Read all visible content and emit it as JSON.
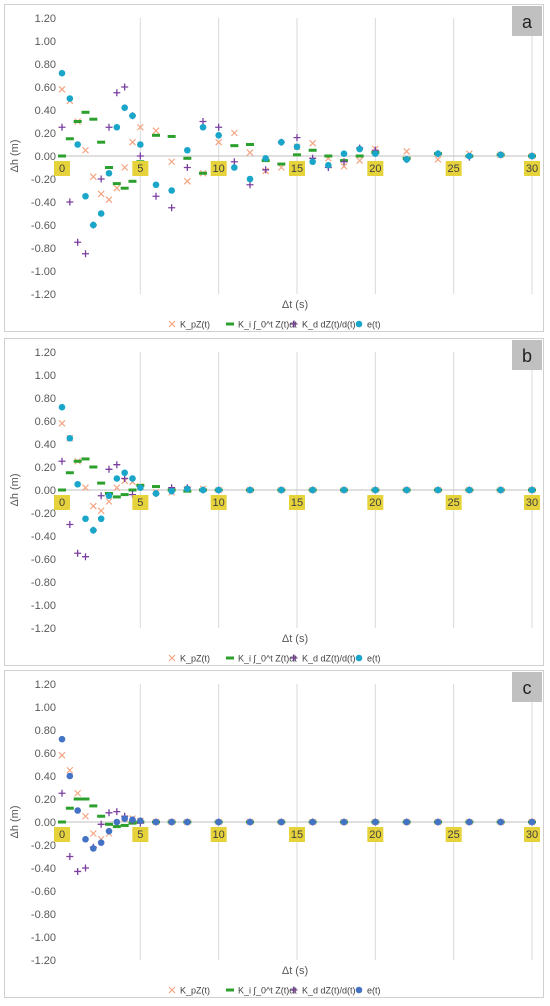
{
  "chart_data": [
    {
      "panel_label": "a",
      "type": "scatter",
      "xlabel": "Δt (s)",
      "ylabel": "Δh (m)",
      "xlim": [
        0,
        30
      ],
      "ylim": [
        -1.2,
        1.2
      ],
      "y_ticks": [
        "1.20",
        "1.00",
        "0.80",
        "0.60",
        "0.40",
        "0.20",
        "0.00",
        "-0.20",
        "-0.40",
        "-0.60",
        "-0.80",
        "-1.00",
        "-1.20"
      ],
      "x_ticks": [
        "0",
        "5",
        "10",
        "15",
        "20",
        "25",
        "30"
      ],
      "grid": "vertical",
      "legend_position": "bottom",
      "legend": [
        "K_pZ(t)",
        "K_i ∫_0^t Z(t)dt",
        "K_d dZ(t)/d(t)",
        "e(t)"
      ],
      "series_colors": [
        "#f4a582",
        "#2ca02c",
        "#7b3fa0",
        "#1aa6c9"
      ],
      "series": [
        {
          "name": "K_pZ(t)",
          "x": [
            0,
            0.5,
            1,
            1.5,
            2,
            2.5,
            3,
            3.5,
            4,
            4.5,
            5,
            6,
            7,
            8,
            9,
            10,
            11,
            12,
            13,
            14,
            15,
            16,
            17,
            18,
            19,
            20,
            22,
            24,
            26,
            28,
            30
          ],
          "values": [
            0.58,
            0.48,
            0.3,
            0.05,
            -0.18,
            -0.33,
            -0.38,
            -0.28,
            -0.1,
            0.12,
            0.25,
            0.22,
            -0.05,
            -0.22,
            -0.15,
            0.12,
            0.2,
            0.03,
            -0.13,
            -0.1,
            0.08,
            0.11,
            -0.02,
            -0.09,
            -0.04,
            0.06,
            0.04,
            -0.03,
            0.02,
            0.01,
            0.0
          ]
        },
        {
          "name": "K_i ∫_0^t Z(t)dt",
          "x": [
            0,
            0.5,
            1,
            1.5,
            2,
            2.5,
            3,
            3.5,
            4,
            4.5,
            5,
            6,
            7,
            8,
            9,
            10,
            11,
            12,
            13,
            14,
            15,
            16,
            17,
            18,
            19,
            20,
            22,
            24,
            26,
            28,
            30
          ],
          "values": [
            0.0,
            0.15,
            0.3,
            0.38,
            0.32,
            0.12,
            -0.1,
            -0.24,
            -0.28,
            -0.22,
            -0.05,
            0.18,
            0.17,
            -0.02,
            -0.15,
            -0.09,
            0.09,
            0.1,
            -0.04,
            -0.07,
            0.01,
            0.05,
            0.0,
            -0.04,
            0.0,
            0.03,
            -0.02,
            0.02,
            0.0,
            0.01,
            0.0
          ]
        },
        {
          "name": "K_d dZ(t)/d(t)",
          "x": [
            0,
            0.5,
            1,
            1.5,
            2,
            2.5,
            3,
            3.5,
            4,
            4.5,
            5,
            6,
            7,
            8,
            9,
            10,
            11,
            12,
            13,
            14,
            15,
            16,
            17,
            18,
            19,
            20,
            22,
            24,
            26,
            28,
            30
          ],
          "values": [
            0.25,
            -0.4,
            -0.75,
            -0.85,
            -0.6,
            -0.2,
            0.25,
            0.55,
            0.6,
            0.35,
            0.0,
            -0.35,
            -0.45,
            -0.1,
            0.3,
            0.25,
            -0.05,
            -0.25,
            -0.12,
            0.12,
            0.16,
            -0.02,
            -0.1,
            -0.05,
            0.07,
            0.05,
            -0.03,
            0.02,
            -0.01,
            0.01,
            0.0
          ]
        },
        {
          "name": "e(t)",
          "x": [
            0,
            0.5,
            1,
            1.5,
            2,
            2.5,
            3,
            3.5,
            4,
            4.5,
            5,
            6,
            7,
            8,
            9,
            10,
            11,
            12,
            13,
            14,
            15,
            16,
            17,
            18,
            19,
            20,
            22,
            24,
            26,
            28,
            30
          ],
          "values": [
            0.72,
            0.5,
            0.1,
            -0.35,
            -0.6,
            -0.5,
            -0.15,
            0.25,
            0.42,
            0.35,
            0.1,
            -0.25,
            -0.3,
            0.05,
            0.25,
            0.18,
            -0.1,
            -0.2,
            -0.02,
            0.12,
            0.08,
            -0.05,
            -0.08,
            0.02,
            0.06,
            0.02,
            -0.03,
            0.02,
            0.0,
            0.01,
            0.0
          ]
        }
      ]
    },
    {
      "panel_label": "b",
      "type": "scatter",
      "xlabel": "Δt (s)",
      "ylabel": "Δh (m)",
      "xlim": [
        0,
        30
      ],
      "ylim": [
        -1.2,
        1.2
      ],
      "y_ticks": [
        "1.20",
        "1.00",
        "0.80",
        "0.60",
        "0.40",
        "0.20",
        "0.00",
        "-0.20",
        "-0.40",
        "-0.60",
        "-0.80",
        "-1.00",
        "-1.20"
      ],
      "x_ticks": [
        "0",
        "5",
        "10",
        "15",
        "20",
        "25",
        "30"
      ],
      "grid": "vertical",
      "legend_position": "bottom",
      "legend": [
        "K_pZ(t)",
        "K_i ∫_0^t Z(t)dt",
        "K_d dZ(t)/d(t)",
        "e(t)"
      ],
      "series_colors": [
        "#f4a582",
        "#2ca02c",
        "#7b3fa0",
        "#1aa6c9"
      ],
      "series": [
        {
          "name": "K_pZ(t)",
          "x": [
            0,
            0.5,
            1,
            1.5,
            2,
            2.5,
            3,
            3.5,
            4,
            4.5,
            5,
            6,
            7,
            8,
            9,
            10,
            12,
            14,
            16,
            18,
            20,
            22,
            24,
            26,
            28,
            30
          ],
          "values": [
            0.58,
            0.45,
            0.25,
            0.02,
            -0.14,
            -0.18,
            -0.1,
            0.02,
            0.08,
            0.07,
            0.03,
            -0.02,
            -0.02,
            0.01,
            0.01,
            0.0,
            0.0,
            0.0,
            0.0,
            0.0,
            0.0,
            0.0,
            0.0,
            0.0,
            0.0,
            0.0
          ]
        },
        {
          "name": "K_i ∫_0^t Z(t)dt",
          "x": [
            0,
            0.5,
            1,
            1.5,
            2,
            2.5,
            3,
            3.5,
            4,
            4.5,
            5,
            6,
            7,
            8,
            9,
            10,
            12,
            14,
            16,
            18,
            20,
            22,
            24,
            26,
            28,
            30
          ],
          "values": [
            0.0,
            0.15,
            0.25,
            0.27,
            0.2,
            0.06,
            -0.03,
            -0.06,
            -0.04,
            0.0,
            0.04,
            0.03,
            0.0,
            -0.01,
            0.0,
            0.0,
            0.0,
            0.0,
            0.0,
            0.0,
            0.0,
            0.0,
            0.0,
            0.0,
            0.0,
            0.0
          ]
        },
        {
          "name": "K_d dZ(t)/d(t)",
          "x": [
            0,
            0.5,
            1,
            1.5,
            2,
            2.5,
            3,
            3.5,
            4,
            4.5,
            5,
            6,
            7,
            8,
            9,
            10,
            12,
            14,
            16,
            18,
            20,
            22,
            24,
            26,
            28,
            30
          ],
          "values": [
            0.25,
            -0.3,
            -0.55,
            -0.58,
            -0.35,
            -0.05,
            0.18,
            0.22,
            0.1,
            -0.04,
            -0.08,
            -0.03,
            0.02,
            0.02,
            0.0,
            0.0,
            0.0,
            0.0,
            0.0,
            0.0,
            0.0,
            0.0,
            0.0,
            0.0,
            0.0,
            0.0
          ]
        },
        {
          "name": "e(t)",
          "x": [
            0,
            0.5,
            1,
            1.5,
            2,
            2.5,
            3,
            3.5,
            4,
            4.5,
            5,
            6,
            7,
            8,
            9,
            10,
            12,
            14,
            16,
            18,
            20,
            22,
            24,
            26,
            28,
            30
          ],
          "values": [
            0.72,
            0.45,
            0.05,
            -0.25,
            -0.35,
            -0.25,
            -0.05,
            0.1,
            0.15,
            0.1,
            0.02,
            -0.03,
            -0.01,
            0.01,
            0.0,
            0.0,
            0.0,
            0.0,
            0.0,
            0.0,
            0.0,
            0.0,
            0.0,
            0.0,
            0.0,
            0.0
          ]
        }
      ]
    },
    {
      "panel_label": "c",
      "type": "scatter",
      "xlabel": "Δt (s)",
      "ylabel": "Δh (m)",
      "xlim": [
        0,
        30
      ],
      "ylim": [
        -1.2,
        1.2
      ],
      "y_ticks": [
        "1.20",
        "1.00",
        "0.80",
        "0.60",
        "0.40",
        "0.20",
        "0.00",
        "-0.20",
        "-0.40",
        "-0.60",
        "-0.80",
        "-1.00",
        "-1.20"
      ],
      "x_ticks": [
        "0",
        "5",
        "10",
        "15",
        "20",
        "25",
        "30"
      ],
      "grid": "vertical",
      "legend_position": "bottom",
      "legend": [
        "K_pZ(t)",
        "K_i ∫_0^t Z(t)dt",
        "K_d dZ(t)/d(t)",
        "e(t)"
      ],
      "series_colors": [
        "#f4a582",
        "#2ca02c",
        "#7b3fa0",
        "#4472c4"
      ],
      "series": [
        {
          "name": "K_pZ(t)",
          "x": [
            0,
            0.5,
            1,
            1.5,
            2,
            2.5,
            3,
            3.5,
            4,
            4.5,
            5,
            6,
            7,
            8,
            10,
            12,
            14,
            16,
            18,
            20,
            22,
            24,
            26,
            28,
            30
          ],
          "values": [
            0.58,
            0.45,
            0.25,
            0.05,
            -0.1,
            -0.15,
            -0.1,
            -0.02,
            0.03,
            0.03,
            0.01,
            0.0,
            0.0,
            0.0,
            0.0,
            0.0,
            0.0,
            0.0,
            0.0,
            0.0,
            0.0,
            0.0,
            0.0,
            0.0,
            0.0
          ]
        },
        {
          "name": "K_i ∫_0^t Z(t)dt",
          "x": [
            0,
            0.5,
            1,
            1.5,
            2,
            2.5,
            3,
            3.5,
            4,
            4.5,
            5,
            6,
            7,
            8,
            10,
            12,
            14,
            16,
            18,
            20,
            22,
            24,
            26,
            28,
            30
          ],
          "values": [
            0.0,
            0.12,
            0.2,
            0.2,
            0.14,
            0.05,
            -0.02,
            -0.04,
            -0.03,
            -0.01,
            0.0,
            0.0,
            0.0,
            0.0,
            0.0,
            0.0,
            0.0,
            0.0,
            0.0,
            0.0,
            0.0,
            0.0,
            0.0,
            0.0,
            0.0
          ]
        },
        {
          "name": "K_d dZ(t)/d(t)",
          "x": [
            0,
            0.5,
            1,
            1.5,
            2,
            2.5,
            3,
            3.5,
            4,
            4.5,
            5,
            6,
            7,
            8,
            10,
            12,
            14,
            16,
            18,
            20,
            22,
            24,
            26,
            28,
            30
          ],
          "values": [
            0.25,
            -0.3,
            -0.43,
            -0.4,
            -0.22,
            -0.02,
            0.08,
            0.09,
            0.05,
            0.01,
            -0.01,
            0.0,
            0.0,
            0.0,
            0.0,
            0.0,
            0.0,
            0.0,
            0.0,
            0.0,
            0.0,
            0.0,
            0.0,
            0.0,
            0.0
          ]
        },
        {
          "name": "e(t)",
          "x": [
            0,
            0.5,
            1,
            1.5,
            2,
            2.5,
            3,
            3.5,
            4,
            4.5,
            5,
            6,
            7,
            8,
            10,
            12,
            14,
            16,
            18,
            20,
            22,
            24,
            26,
            28,
            30
          ],
          "values": [
            0.72,
            0.4,
            0.1,
            -0.15,
            -0.23,
            -0.18,
            -0.08,
            0.0,
            0.03,
            0.02,
            0.01,
            0.0,
            0.0,
            0.0,
            0.0,
            0.0,
            0.0,
            0.0,
            0.0,
            0.0,
            0.0,
            0.0,
            0.0,
            0.0,
            0.0
          ]
        }
      ]
    }
  ]
}
